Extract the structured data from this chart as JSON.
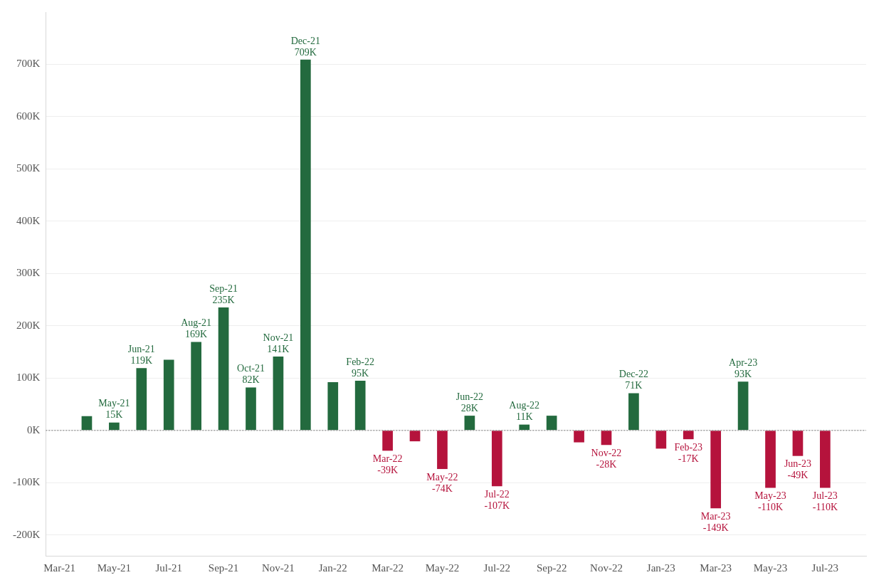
{
  "chart_data": {
    "type": "bar",
    "categories": [
      "Mar-21",
      null,
      "May-21",
      null,
      "Jul-21",
      null,
      "Sep-21",
      null,
      "Nov-21",
      null,
      "Jan-22",
      null,
      "Mar-22",
      null,
      "May-22",
      null,
      "Jul-22",
      null,
      "Sep-22",
      null,
      "Nov-22",
      null,
      "Jan-23",
      null,
      "Mar-23",
      null,
      "May-23",
      null,
      "Jul-23",
      null
    ],
    "values": [
      null,
      27000,
      15000,
      119000,
      135000,
      169000,
      235000,
      82000,
      141000,
      709000,
      92000,
      95000,
      -39000,
      -21000,
      -74000,
      28000,
      -107000,
      11000,
      28000,
      -23000,
      -28000,
      71000,
      -35000,
      -17000,
      -149000,
      93000,
      -110000,
      -49000,
      -110000,
      null
    ],
    "colors": [
      "#236a3e",
      "#236a3e",
      "#236a3e",
      "#236a3e",
      "#236a3e",
      "#236a3e",
      "#236a3e",
      "#236a3e",
      "#236a3e",
      "#236a3e",
      "#236a3e",
      "#236a3e",
      "#b5133c",
      "#b5133c",
      "#b5133c",
      "#236a3e",
      "#b5133c",
      "#236a3e",
      "#236a3e",
      "#b5133c",
      "#b5133c",
      "#236a3e",
      "#b5133c",
      "#b5133c",
      "#b5133c",
      "#236a3e",
      "#b5133c",
      "#b5133c",
      "#b5133c",
      "#b5133c"
    ],
    "value_labels": [
      null,
      null,
      "May-21\n15K",
      "Jun-21\n119K",
      null,
      "Aug-21\n169K",
      "Sep-21\n235K",
      "Oct-21\n82K",
      "Nov-21\n141K",
      "Dec-21\n709K",
      null,
      "Feb-22\n95K",
      "Mar-22\n-39K",
      null,
      "May-22\n-74K",
      "Jun-22\n28K",
      "Jul-22\n-107K",
      "Aug-22\n11K",
      null,
      null,
      "Nov-22\n-28K",
      "Dec-22\n71K",
      null,
      "Feb-23\n-17K",
      "Mar-23\n-149K",
      "Apr-23\n93K",
      "May-23\n-110K",
      "Jun-23\n-49K",
      "Jul-23\n-110K",
      null
    ],
    "ylim": [
      -240000,
      800000
    ],
    "yticks": [
      {
        "value": -200000,
        "label": "-200K"
      },
      {
        "value": -100000,
        "label": "-100K"
      },
      {
        "value": 0,
        "label": "0K"
      },
      {
        "value": 100000,
        "label": "100K"
      },
      {
        "value": 200000,
        "label": "200K"
      },
      {
        "value": 300000,
        "label": "300K"
      },
      {
        "value": 400000,
        "label": "400K"
      },
      {
        "value": 500000,
        "label": "500K"
      },
      {
        "value": 600000,
        "label": "600K"
      },
      {
        "value": 700000,
        "label": "700K"
      }
    ],
    "ref_lines": [
      {
        "axis": "y",
        "value": 0,
        "color": "#a0a0a0",
        "line_style": "dotted"
      }
    ],
    "grid": "y",
    "legend": false
  }
}
